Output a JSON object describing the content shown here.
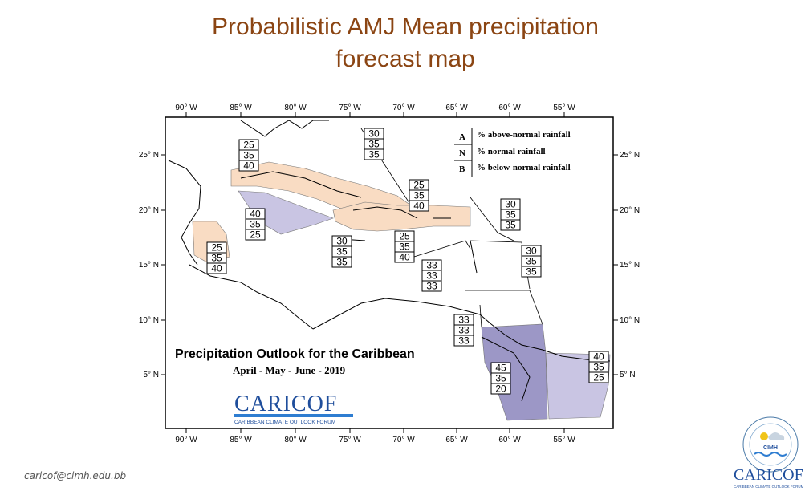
{
  "slide": {
    "title_line1": "Probabilistic AMJ Mean precipitation",
    "title_line2": "forecast map",
    "email": "caricof@cimh.edu.bb"
  },
  "map": {
    "lon_labels": [
      "90° W",
      "85° W",
      "80° W",
      "75° W",
      "70° W",
      "65° W",
      "60° W",
      "55° W"
    ],
    "lat_labels": [
      "25° N",
      "20° N",
      "15° N",
      "10° N",
      "5° N"
    ],
    "outlook_title": "Precipitation Outlook for the Caribbean",
    "season": "April - May - June - 2019",
    "logo": {
      "name": "CARICOF",
      "tagline": "CARIBBEAN CLIMATE OUTLOOK FORUM"
    },
    "legend": [
      {
        "key": "A",
        "text": "% above-normal rainfall"
      },
      {
        "key": "N",
        "text": "% normal rainfall"
      },
      {
        "key": "B",
        "text": "% below-normal rainfall"
      }
    ],
    "colors": {
      "above": "#c9c5e3",
      "above_strong": "#9c97c6",
      "below": "#f9dcc3",
      "frame": "#000000"
    },
    "probability_boxes": [
      {
        "region": "gulf-north",
        "values": [
          "25",
          "35",
          "40"
        ]
      },
      {
        "region": "bahamas-north",
        "values": [
          "30",
          "35",
          "35"
        ]
      },
      {
        "region": "hispaniola",
        "values": [
          "25",
          "35",
          "40"
        ]
      },
      {
        "region": "atlantic-east",
        "values": [
          "30",
          "35",
          "35"
        ]
      },
      {
        "region": "western-cuba",
        "values": [
          "40",
          "35",
          "25"
        ]
      },
      {
        "region": "belize",
        "values": [
          "25",
          "35",
          "40"
        ]
      },
      {
        "region": "jamaica",
        "values": [
          "30",
          "35",
          "35"
        ]
      },
      {
        "region": "puerto-rico",
        "values": [
          "25",
          "35",
          "40"
        ]
      },
      {
        "region": "leeward-islands",
        "values": [
          "30",
          "35",
          "35"
        ]
      },
      {
        "region": "eastern-caribbean",
        "values": [
          "33",
          "33",
          "33"
        ]
      },
      {
        "region": "trinidad",
        "values": [
          "33",
          "33",
          "33"
        ]
      },
      {
        "region": "guyana",
        "values": [
          "45",
          "35",
          "20"
        ]
      },
      {
        "region": "suriname",
        "values": [
          "40",
          "35",
          "25"
        ]
      }
    ],
    "cimh_logo": {
      "acronym": "CIMH"
    },
    "corner_logo": {
      "name": "CARICOF",
      "tagline": "CARIBBEAN CLIMATE OUTLOOK FORUM"
    }
  }
}
